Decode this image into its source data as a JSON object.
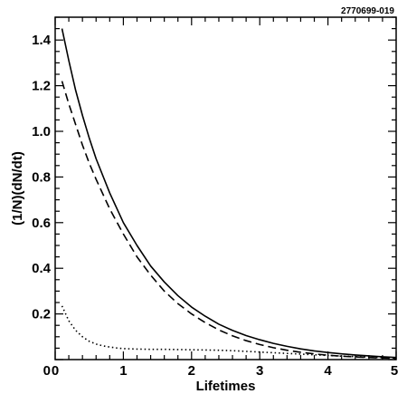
{
  "figure_id": "2770699-019",
  "chart_data": {
    "type": "line",
    "xlabel": "Lifetimes",
    "ylabel": "(1/N)(dN/dt)",
    "xlim": [
      0,
      5
    ],
    "ylim": [
      0,
      1.5
    ],
    "x_ticks": [
      "0",
      "1",
      "2",
      "3",
      "4",
      "5"
    ],
    "y_ticks": [
      "0.2",
      "0.4",
      "0.6",
      "0.8",
      "1.0",
      "1.2",
      "1.4"
    ],
    "y_zero_label": "0",
    "grid": false,
    "series": [
      {
        "style": "solid",
        "color": "#000000",
        "x": [
          0.1,
          0.2,
          0.3,
          0.4,
          0.5,
          0.6,
          0.8,
          1.0,
          1.2,
          1.4,
          1.6,
          1.8,
          2.0,
          2.2,
          2.4,
          2.6,
          2.8,
          3.0,
          3.2,
          3.4,
          3.6,
          3.8,
          4.0,
          4.2,
          4.4,
          4.6,
          4.8,
          5.0
        ],
        "y": [
          1.45,
          1.31,
          1.18,
          1.07,
          0.97,
          0.88,
          0.73,
          0.6,
          0.5,
          0.41,
          0.34,
          0.28,
          0.23,
          0.19,
          0.155,
          0.128,
          0.105,
          0.087,
          0.071,
          0.058,
          0.047,
          0.038,
          0.031,
          0.025,
          0.02,
          0.016,
          0.012,
          0.009
        ]
      },
      {
        "style": "dashed",
        "color": "#000000",
        "x": [
          0.1,
          0.2,
          0.3,
          0.4,
          0.5,
          0.6,
          0.8,
          1.0,
          1.2,
          1.4,
          1.6,
          1.8,
          2.0,
          2.2,
          2.4,
          2.6,
          2.8,
          3.0,
          3.2,
          3.4,
          3.6,
          3.8,
          4.0,
          4.2,
          4.4,
          4.6,
          4.8,
          5.0
        ],
        "y": [
          1.22,
          1.12,
          1.03,
          0.94,
          0.86,
          0.79,
          0.66,
          0.55,
          0.45,
          0.37,
          0.3,
          0.245,
          0.2,
          0.162,
          0.13,
          0.104,
          0.083,
          0.066,
          0.052,
          0.041,
          0.032,
          0.025,
          0.019,
          0.015,
          0.012,
          0.009,
          0.007,
          0.005
        ]
      },
      {
        "style": "dotted",
        "color": "#000000",
        "x": [
          0.1,
          0.2,
          0.3,
          0.4,
          0.5,
          0.6,
          0.7,
          0.8,
          0.9,
          1.0,
          1.2,
          1.4,
          1.6,
          1.8,
          2.0,
          2.2,
          2.4,
          2.6,
          2.8,
          3.0,
          3.2,
          3.4,
          3.6,
          3.8,
          4.0,
          4.2,
          4.4,
          4.6,
          4.8,
          5.0
        ],
        "y": [
          0.235,
          0.17,
          0.128,
          0.1,
          0.08,
          0.068,
          0.06,
          0.055,
          0.051,
          0.048,
          0.046,
          0.045,
          0.045,
          0.044,
          0.043,
          0.042,
          0.041,
          0.039,
          0.036,
          0.033,
          0.03,
          0.027,
          0.024,
          0.021,
          0.018,
          0.015,
          0.013,
          0.011,
          0.009,
          0.007
        ]
      }
    ]
  }
}
